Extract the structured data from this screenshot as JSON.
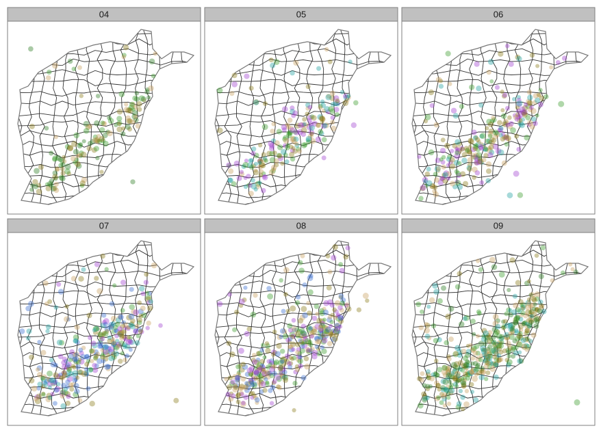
{
  "panels": [
    {
      "label": "04"
    },
    {
      "label": "05"
    },
    {
      "label": "06"
    },
    {
      "label": "07"
    },
    {
      "label": "08"
    },
    {
      "label": "09"
    }
  ]
}
